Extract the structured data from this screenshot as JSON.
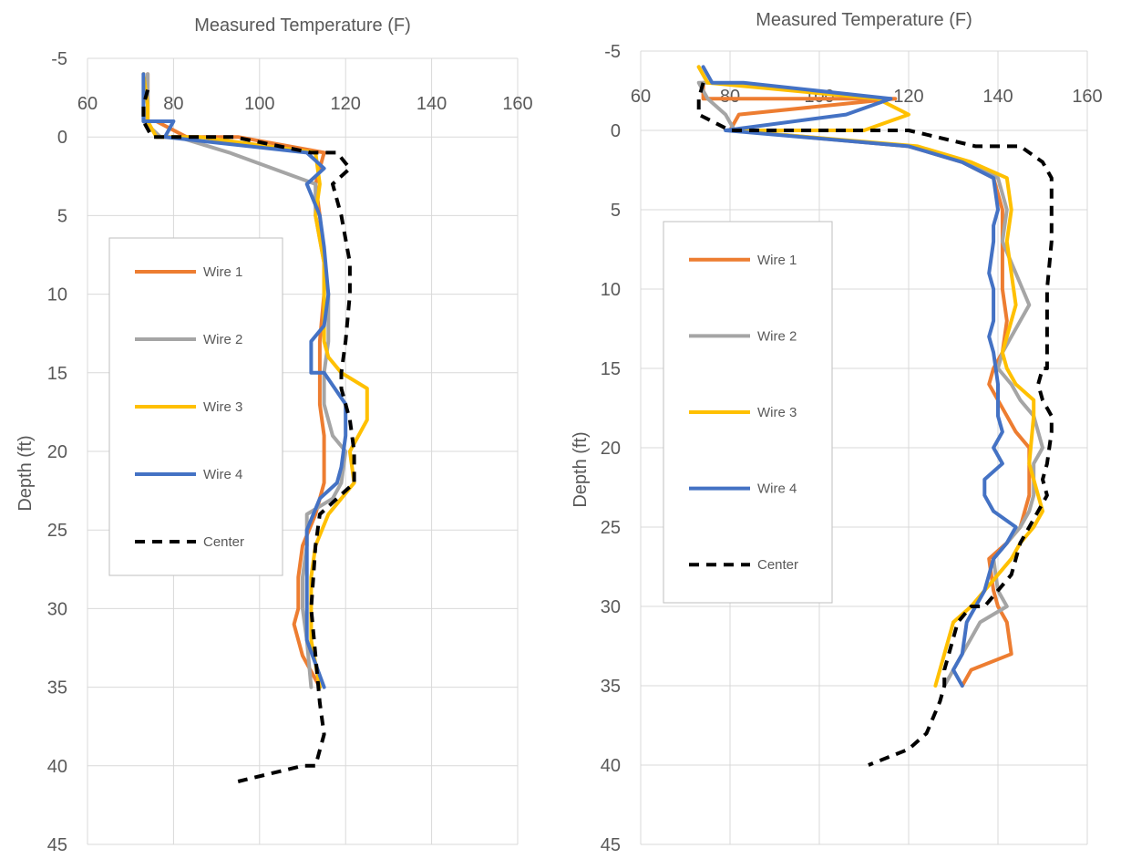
{
  "chart_data": [
    {
      "type": "line",
      "title": "Measured Temperature (F)",
      "xlabel": "",
      "ylabel": "Depth (ft)",
      "xlim": [
        60,
        160
      ],
      "xticks": [
        "60",
        "80",
        "100",
        "120",
        "140",
        "160"
      ],
      "ylim": [
        -5,
        45
      ],
      "yticks": [
        "-5",
        "0",
        "5",
        "10",
        "15",
        "20",
        "25",
        "30",
        "35",
        "40",
        "45"
      ],
      "y_reversed": true,
      "grid": true,
      "legend_position": "left-middle",
      "series": [
        {
          "name": "Wire 1",
          "color": "#ED7D31",
          "dash": "solid",
          "x": [
            74,
            74,
            74,
            76,
            83,
            95,
            115,
            113,
            114,
            115,
            115,
            114,
            114,
            114,
            115,
            115,
            115,
            113,
            110,
            109,
            109,
            108,
            109,
            110,
            114
          ],
          "y": [
            -4,
            -2,
            -1,
            -1,
            0,
            0,
            1,
            3,
            5,
            8,
            10,
            13,
            15,
            17,
            19,
            21,
            22,
            24,
            26,
            28,
            30,
            31,
            32,
            33,
            35
          ]
        },
        {
          "name": "Wire 2",
          "color": "#A5A5A5",
          "dash": "solid",
          "x": [
            74,
            74,
            73,
            77,
            81,
            93,
            113,
            113,
            115,
            116,
            116,
            115,
            115,
            117,
            120,
            119,
            117,
            111,
            111,
            110,
            110,
            111,
            112
          ],
          "y": [
            -4,
            -2,
            -1,
            0,
            0,
            1,
            3,
            5,
            8,
            10,
            13,
            15,
            17,
            19,
            20,
            22,
            23,
            24,
            26,
            28,
            30,
            32,
            35
          ]
        },
        {
          "name": "Wire 3",
          "color": "#FFC000",
          "dash": "solid",
          "x": [
            73,
            74,
            74,
            76,
            80,
            86,
            113,
            114,
            113,
            115,
            115,
            115,
            116,
            119,
            125,
            125,
            121,
            122,
            119,
            116,
            113,
            112,
            112,
            112,
            114
          ],
          "y": [
            -4,
            -2,
            -1,
            0,
            0,
            0,
            1,
            3,
            5,
            8,
            10,
            13,
            14,
            15,
            16,
            18,
            20,
            22,
            23,
            24,
            26,
            28,
            30,
            32,
            35
          ]
        },
        {
          "name": "Wire 4",
          "color": "#4472C4",
          "dash": "solid",
          "x": [
            73,
            73,
            73,
            80,
            78,
            111,
            115,
            111,
            114,
            115,
            116,
            115,
            112,
            112,
            115,
            120,
            120,
            119,
            118,
            114,
            111,
            111,
            111,
            111,
            115
          ],
          "y": [
            -4,
            -2,
            -1,
            -1,
            0,
            1,
            2,
            3,
            5,
            7,
            10,
            12,
            13,
            15,
            15,
            17,
            19,
            21,
            22,
            23,
            25,
            27,
            30,
            32,
            35
          ]
        },
        {
          "name": "Center",
          "color": "#000000",
          "dash": "dashed",
          "x": [
            74,
            73,
            73,
            75,
            80,
            94,
            112,
            118,
            121,
            117,
            119,
            121,
            121,
            120,
            119,
            119,
            121,
            122,
            122,
            118,
            114,
            113,
            112,
            113,
            114,
            115,
            113,
            110,
            95
          ],
          "y": [
            -3,
            -2,
            -1,
            0,
            0,
            0,
            1,
            1,
            2,
            3,
            5,
            8,
            10,
            13,
            15,
            16,
            18,
            20,
            22,
            23,
            24,
            26,
            30,
            33,
            36,
            38,
            40,
            40,
            41
          ]
        }
      ]
    },
    {
      "type": "line",
      "title": "Measured Temperature (F)",
      "xlabel": "",
      "ylabel": "Depth (ft)",
      "xlim": [
        60,
        160
      ],
      "xticks": [
        "60",
        "80",
        "100",
        "120",
        "140",
        "160"
      ],
      "ylim": [
        -5,
        45
      ],
      "yticks": [
        "-5",
        "0",
        "5",
        "10",
        "15",
        "20",
        "25",
        "30",
        "35",
        "40",
        "45"
      ],
      "y_reversed": true,
      "grid": true,
      "legend_position": "left-middle",
      "series": [
        {
          "name": "Wire 1",
          "color": "#ED7D31",
          "dash": "solid",
          "x": [
            74,
            74,
            76,
            109,
            117,
            82,
            80,
            120,
            132,
            139,
            141,
            141,
            141,
            142,
            141,
            139,
            138,
            140,
            142,
            144,
            147,
            147,
            147,
            145,
            142,
            138,
            139,
            140,
            142,
            143,
            134,
            132
          ],
          "y": [
            -3,
            -2,
            -2,
            -2,
            -2,
            -1,
            0,
            1,
            2,
            3,
            5,
            7,
            10,
            12,
            14,
            15,
            16,
            17,
            18,
            19,
            20,
            21,
            23,
            25,
            26,
            27,
            29,
            30,
            31,
            33,
            34,
            35
          ]
        },
        {
          "name": "Wire 2",
          "color": "#A5A5A5",
          "dash": "solid",
          "x": [
            73,
            75,
            73,
            75,
            79,
            81,
            120,
            133,
            140,
            142,
            141,
            144,
            147,
            143,
            141,
            140,
            143,
            145,
            148,
            150,
            148,
            148,
            147,
            145,
            142,
            139,
            140,
            142,
            136,
            134,
            132,
            130,
            128
          ],
          "y": [
            -4,
            -3,
            -3,
            -2,
            -1,
            0,
            1,
            2,
            3,
            5,
            7,
            9,
            11,
            13,
            14,
            15,
            16,
            17,
            18,
            20,
            21,
            23,
            24,
            25,
            26,
            27,
            29,
            30,
            31,
            32,
            33,
            34,
            35
          ]
        },
        {
          "name": "Wire 3",
          "color": "#FFC000",
          "dash": "solid",
          "x": [
            73,
            75,
            113,
            120,
            110,
            80,
            122,
            134,
            142,
            143,
            142,
            143,
            144,
            142,
            141,
            142,
            144,
            148,
            148,
            147,
            150,
            148,
            145,
            143,
            140,
            134,
            130,
            128,
            126
          ],
          "y": [
            -4,
            -3,
            -2,
            -1,
            0,
            0,
            1,
            2,
            3,
            5,
            7,
            9,
            11,
            13,
            14,
            15,
            16,
            17,
            18,
            21,
            24,
            25,
            26,
            27,
            28,
            30,
            31,
            33,
            35
          ]
        },
        {
          "name": "Wire 4",
          "color": "#4472C4",
          "dash": "solid",
          "x": [
            74,
            76,
            83,
            116,
            106,
            79,
            120,
            132,
            139,
            140,
            139,
            139,
            138,
            139,
            139,
            138,
            139,
            140,
            140,
            141,
            139,
            141,
            137,
            137,
            139,
            144,
            142,
            139,
            137,
            133,
            132,
            130,
            132
          ],
          "y": [
            -4,
            -3,
            -3,
            -2,
            -1,
            0,
            1,
            2,
            3,
            5,
            6,
            7,
            9,
            10,
            12,
            13,
            14,
            16,
            18,
            19,
            20,
            21,
            22,
            23,
            24,
            25,
            26,
            27,
            29,
            31,
            33,
            34,
            35
          ]
        },
        {
          "name": "Center",
          "color": "#000000",
          "dash": "dashed",
          "x": [
            74,
            73,
            73,
            80,
            100,
            120,
            135,
            145,
            150,
            152,
            152,
            152,
            151,
            151,
            151,
            150,
            149,
            150,
            152,
            152,
            151,
            150,
            151,
            149,
            145,
            144,
            143,
            140,
            137,
            134,
            131,
            130,
            129,
            128,
            128,
            127,
            124,
            120,
            111
          ],
          "y": [
            -3,
            -2,
            -1,
            0,
            0,
            0,
            1,
            1,
            2,
            3,
            5,
            7,
            10,
            13,
            15,
            15,
            16,
            17,
            18,
            19,
            21,
            22,
            23,
            24,
            26,
            27,
            28,
            29,
            30,
            30,
            31,
            32,
            33,
            34,
            35,
            36,
            38,
            39,
            40
          ]
        }
      ]
    }
  ]
}
